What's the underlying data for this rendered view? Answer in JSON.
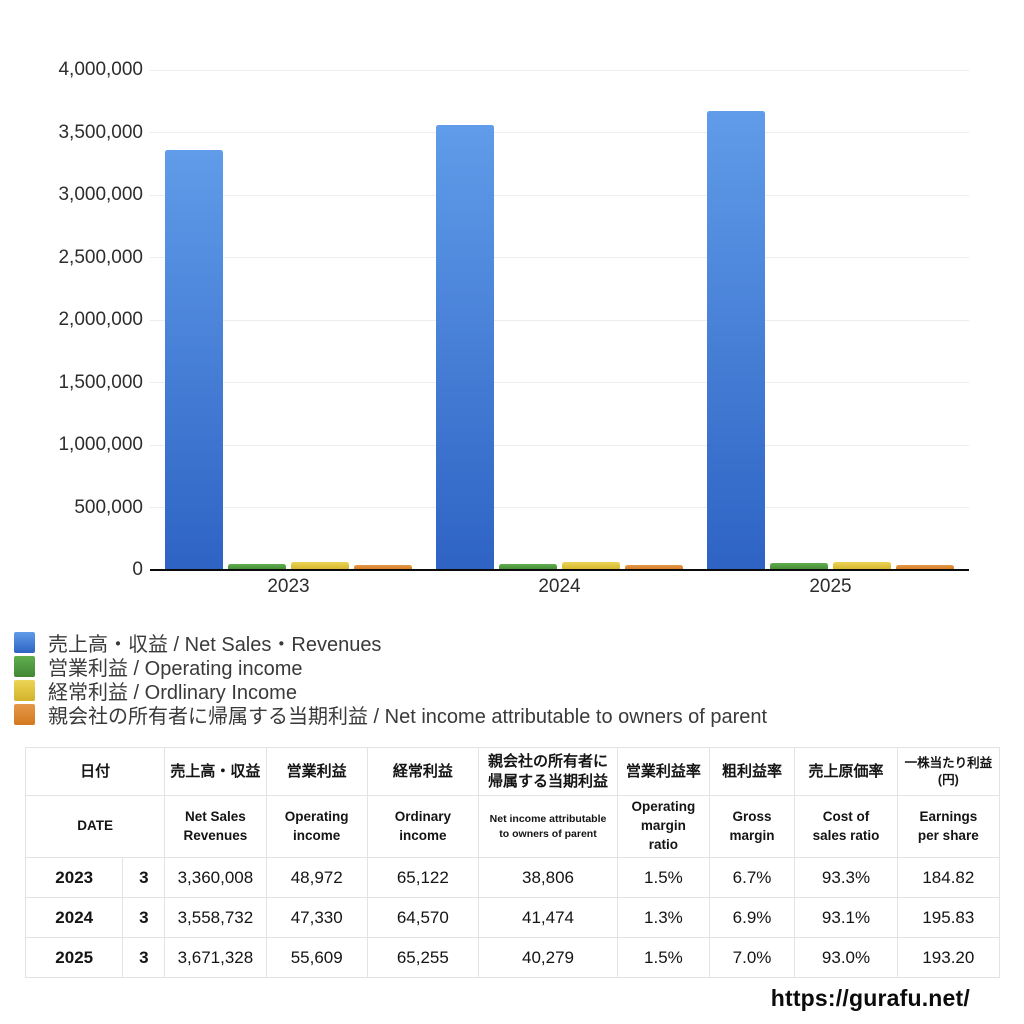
{
  "chart_data": {
    "type": "bar",
    "title": "",
    "categories": [
      "2023",
      "2024",
      "2025"
    ],
    "series": [
      {
        "name": "売上高・収益 / Net Sales・Revenues",
        "values": [
          3360008,
          3558732,
          3671328
        ],
        "color_top": "#609CE9",
        "color_bottom": "#2E63C4"
      },
      {
        "name": "営業利益 / Operating income",
        "values": [
          48972,
          47330,
          55609
        ],
        "color_top": "#5FAE4E",
        "color_bottom": "#448735"
      },
      {
        "name": "経常利益 / Ordlinary Income",
        "values": [
          65122,
          64570,
          65255
        ],
        "color_top": "#ECD455",
        "color_bottom": "#D2B32C"
      },
      {
        "name": "親会社の所有者に帰属する当期利益 / Net income attributable to owners of parent",
        "values": [
          38806,
          41474,
          40279
        ],
        "color_top": "#E5984A",
        "color_bottom": "#D3791F"
      }
    ],
    "ylim": [
      0,
      4000000
    ],
    "ytick_step": 500000,
    "yticks": [
      "0",
      "500,000",
      "1,000,000",
      "1,500,000",
      "2,000,000",
      "2,500,000",
      "3,000,000",
      "3,500,000",
      "4,000,000"
    ],
    "grid": true,
    "legend_position": "bottom-left"
  },
  "table": {
    "header_jp": [
      "日付",
      "売上高・収益",
      "営業利益",
      "経常利益",
      "親会社の所有者に\n帰属する当期利益",
      "営業利益率",
      "粗利益率",
      "売上原価率",
      "一株当たり利益\n(円)"
    ],
    "header_en": [
      "DATE",
      "Net Sales\nRevenues",
      "Operating\nincome",
      "Ordinary\nincome",
      "Net income attributable\nto owners of parent",
      "Operating\nmargin\nratio",
      "Gross\nmargin",
      "Cost of\nsales ratio",
      "Earnings\nper share"
    ],
    "rows": [
      {
        "year": "2023",
        "month": "3",
        "values": [
          "3,360,008",
          "48,972",
          "65,122",
          "38,806",
          "1.5%",
          "6.7%",
          "93.3%",
          "184.82"
        ]
      },
      {
        "year": "2024",
        "month": "3",
        "values": [
          "3,558,732",
          "47,330",
          "64,570",
          "41,474",
          "1.3%",
          "6.9%",
          "93.1%",
          "195.83"
        ]
      },
      {
        "year": "2025",
        "month": "3",
        "values": [
          "3,671,328",
          "55,609",
          "65,255",
          "40,279",
          "1.5%",
          "7.0%",
          "93.0%",
          "193.20"
        ]
      }
    ]
  },
  "footer": {
    "url": "https://gurafu.net/"
  }
}
